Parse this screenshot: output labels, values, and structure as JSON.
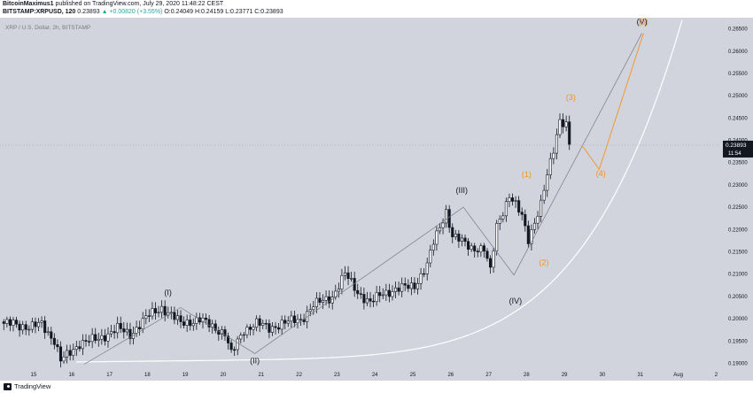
{
  "header": {
    "author": "BitcoinMaximus1",
    "published": "published on TradingView.com, July 29, 2020 11:48:22 CEST",
    "symbol": "BITSTAMP:XRPUSD, 120",
    "price": "0.23893",
    "change": "▲ +0.00820 (+3.55%)",
    "ohlc": "O:0.24049 H:0.24159 L:0.23771 C:0.23893"
  },
  "footer": {
    "brand": "TradingView"
  },
  "chart_data": {
    "type": "candlestick",
    "subtitle": "XRP / U.S. Dollar, 2h, BITSTAMP",
    "x_ticks": [
      "15",
      "16",
      "17",
      "18",
      "19",
      "20",
      "21",
      "22",
      "23",
      "24",
      "25",
      "26",
      "27",
      "28",
      "29",
      "30",
      "31",
      "Aug",
      "2"
    ],
    "y_ticks": [
      "0.26500",
      "0.26000",
      "0.25500",
      "0.25000",
      "0.24500",
      "0.24000",
      "0.23500",
      "0.23000",
      "0.22500",
      "0.22000",
      "0.21500",
      "0.21000",
      "0.20500",
      "0.20000",
      "0.19500",
      "0.19000"
    ],
    "ylim": [
      0.1885,
      0.2675
    ],
    "current_price": "0.23893",
    "countdown": "11:54",
    "price_line_color": "#131722",
    "up_color": "#ffffff",
    "down_color": "#131722",
    "background": "#d1d4dc",
    "anchors": [
      [
        0,
        0.1985
      ],
      [
        3,
        0.1992
      ],
      [
        8,
        0.1978
      ],
      [
        12,
        0.199
      ],
      [
        16,
        0.195
      ],
      [
        18,
        0.1905
      ],
      [
        24,
        0.1945
      ],
      [
        30,
        0.1955
      ],
      [
        36,
        0.1978
      ],
      [
        40,
        0.1965
      ],
      [
        46,
        0.2008
      ],
      [
        50,
        0.2025
      ],
      [
        56,
        0.199
      ],
      [
        62,
        0.1998
      ],
      [
        66,
        0.1982
      ],
      [
        70,
        0.1968
      ],
      [
        72,
        0.192
      ],
      [
        76,
        0.1975
      ],
      [
        80,
        0.199
      ],
      [
        84,
        0.1978
      ],
      [
        88,
        0.199
      ],
      [
        94,
        0.1998
      ],
      [
        98,
        0.203
      ],
      [
        104,
        0.205
      ],
      [
        108,
        0.21
      ],
      [
        112,
        0.206
      ],
      [
        116,
        0.2035
      ],
      [
        120,
        0.2058
      ],
      [
        124,
        0.2065
      ],
      [
        130,
        0.2075
      ],
      [
        134,
        0.212
      ],
      [
        136,
        0.217
      ],
      [
        140,
        0.2242
      ],
      [
        142,
        0.2185
      ],
      [
        148,
        0.216
      ],
      [
        152,
        0.2155
      ],
      [
        154,
        0.2105
      ],
      [
        156,
        0.221
      ],
      [
        160,
        0.2275
      ],
      [
        164,
        0.223
      ],
      [
        166,
        0.218
      ],
      [
        170,
        0.2255
      ],
      [
        172,
        0.232
      ],
      [
        174,
        0.238
      ],
      [
        176,
        0.2448
      ],
      [
        178,
        0.2435
      ],
      [
        179,
        0.2389
      ]
    ],
    "bars": 180,
    "wave_labels": [
      {
        "text": "(I)",
        "date": "Jul 18 13:00",
        "price": 0.2053,
        "color": "#131722"
      },
      {
        "text": "(II)",
        "date": "Jul 20 20:00",
        "price": 0.19,
        "color": "#131722"
      },
      {
        "text": "(III)",
        "date": "Jul 26 07:00",
        "price": 0.2282,
        "color": "#131722"
      },
      {
        "text": "(IV)",
        "date": "Jul 27 17:00",
        "price": 0.2034,
        "color": "#131722"
      },
      {
        "text": "(V)",
        "date": "Jul 31 01:00",
        "price": 0.266,
        "color": "#131722"
      },
      {
        "text": "(1)",
        "date": "Jul 28 00:00",
        "price": 0.2318,
        "color": "#f7931a"
      },
      {
        "text": "(2)",
        "date": "Jul 28 11:00",
        "price": 0.212,
        "color": "#f7931a"
      },
      {
        "text": "(3)",
        "date": "Jul 29 04:00",
        "price": 0.249,
        "color": "#f7931a"
      },
      {
        "text": "(4)",
        "date": "Jul 29 23:00",
        "price": 0.232,
        "color": "#f7931a"
      },
      {
        "text": "(5)",
        "date": "Jul 31 02:00",
        "price": 0.266,
        "color": "#f7931a"
      }
    ],
    "gray_wave_path": [
      [
        "Jul 16 08:00",
        0.1898
      ],
      [
        "Jul 18 21:00",
        0.2025
      ],
      [
        "Jul 20 20:00",
        0.1922
      ],
      [
        "Jul 26 08:00",
        0.225
      ],
      [
        "Jul 27 16:00",
        0.2098
      ],
      [
        "Jul 31 01:00",
        0.264
      ]
    ],
    "orange_wave_path": [
      [
        "Jul 29 11:00",
        0.2389
      ],
      [
        "Jul 29 22:00",
        0.2335
      ],
      [
        "Jul 31 02:00",
        0.264
      ]
    ],
    "curve_color": "#ffffff",
    "gray_line_color": "#787b86",
    "orange_color": "#f7931a"
  }
}
